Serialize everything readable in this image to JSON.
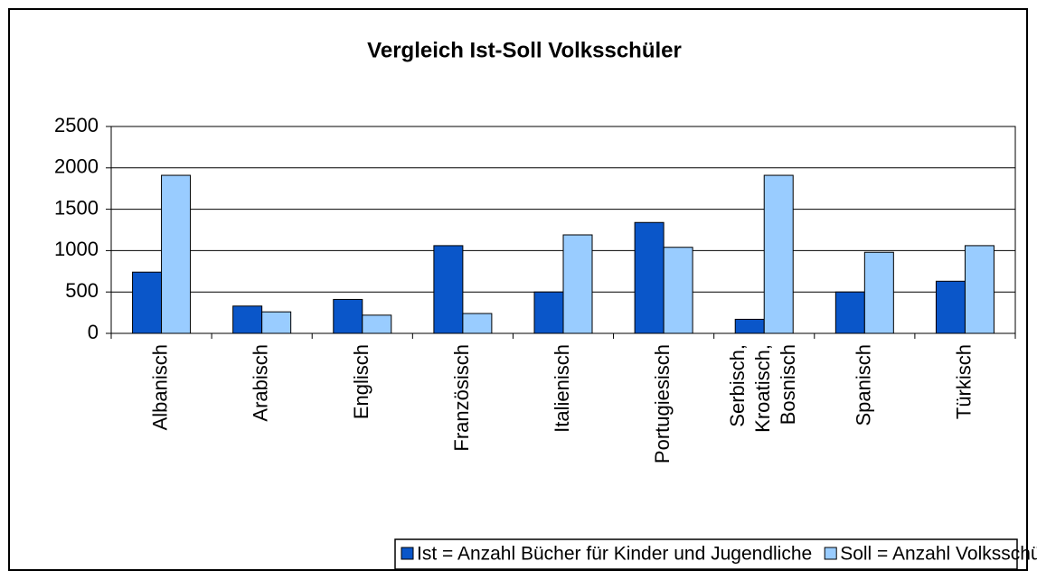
{
  "chart_data": {
    "type": "bar",
    "title": "Vergleich Ist-Soll Volksschüler",
    "categories": [
      "Albanisch",
      "Arabisch",
      "Englisch",
      "Französisch",
      "Italienisch",
      "Portugiesisch",
      "Serbisch, Kroatisch, Bosnisch",
      "Spanisch",
      "Türkisch"
    ],
    "series": [
      {
        "name": "Ist = Anzahl Bücher für Kinder und Jugendliche",
        "color": "#0a56c9",
        "values": [
          740,
          330,
          410,
          1060,
          500,
          1340,
          170,
          500,
          630
        ]
      },
      {
        "name": "Soll = Anzahl Volksschüler",
        "color": "#99ccff",
        "values": [
          1910,
          260,
          220,
          240,
          1190,
          1040,
          1910,
          980,
          1060
        ]
      }
    ],
    "ylim": [
      0,
      2500
    ],
    "yticks": [
      0,
      500,
      1000,
      1500,
      2000,
      2500
    ],
    "grid": true,
    "legend": "bottom"
  }
}
